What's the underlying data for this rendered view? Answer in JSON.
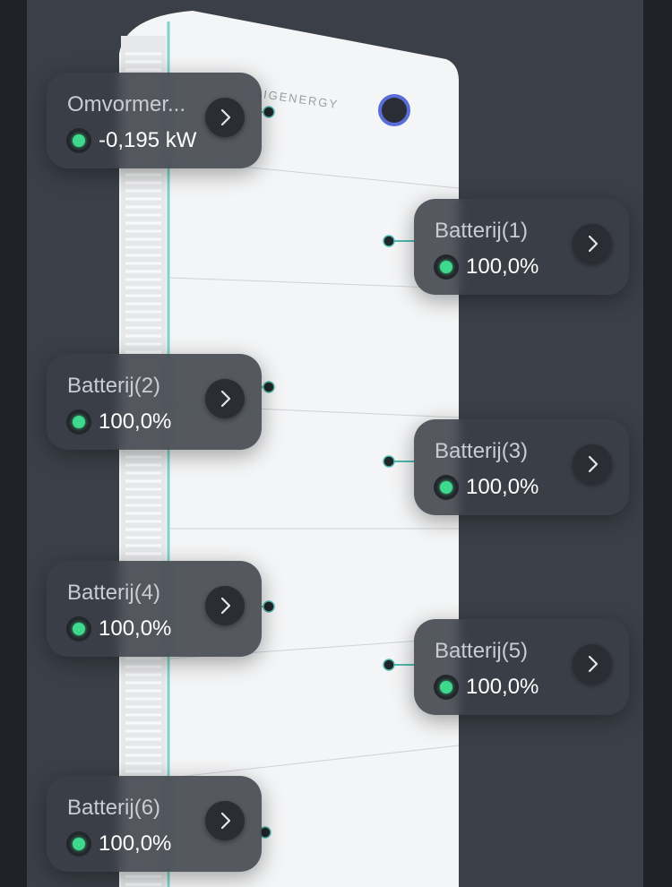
{
  "brand": "SIGENERGY",
  "cards": [
    {
      "label": "Omvormer...",
      "value": "-0,195 kW"
    },
    {
      "label": "Batterij(1)",
      "value": "100,0%"
    },
    {
      "label": "Batterij(2)",
      "value": "100,0%"
    },
    {
      "label": "Batterij(3)",
      "value": "100,0%"
    },
    {
      "label": "Batterij(4)",
      "value": "100,0%"
    },
    {
      "label": "Batterij(5)",
      "value": "100,0%"
    },
    {
      "label": "Batterij(6)",
      "value": "100,0%"
    }
  ]
}
